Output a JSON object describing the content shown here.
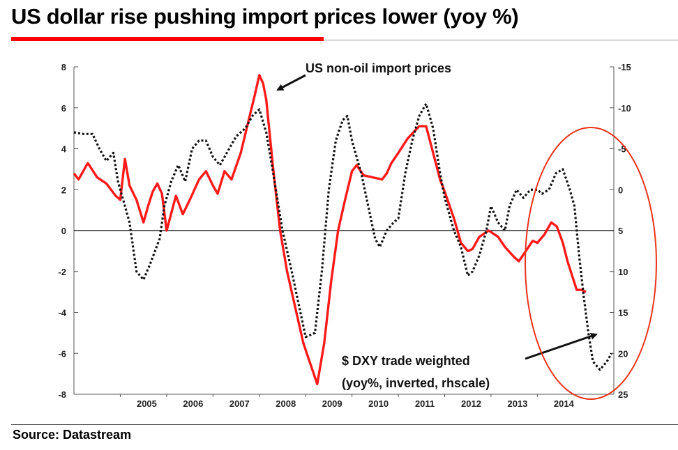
{
  "header": {
    "title": "US dollar rise pushing import prices lower (yoy %)"
  },
  "footer": {
    "source": "Source: Datastream"
  },
  "chart_data": {
    "type": "line",
    "title": "US dollar rise pushing import prices lower (yoy %)",
    "xlabel": "",
    "ylabel": "",
    "x_tick_labels": [
      "2005",
      "2006",
      "2007",
      "2008",
      "2009",
      "2010",
      "2011",
      "2012",
      "2013",
      "2014"
    ],
    "left_axis": {
      "ylim": [
        -8,
        8
      ],
      "ticks": [
        8,
        6,
        4,
        2,
        0,
        -2,
        -4,
        -6,
        -8
      ]
    },
    "right_axis": {
      "ylim": [
        -15,
        25
      ],
      "inverted": true,
      "ticks": [
        -15,
        -10,
        -5,
        0,
        5,
        10,
        15,
        20,
        25
      ]
    },
    "colors": {
      "import": "#ff1a1a",
      "dxy": "#111111",
      "circle": "#e8341c",
      "zero_line": "#000000"
    },
    "series": [
      {
        "name": "US non-oil import prices",
        "axis": "left",
        "style": "solid",
        "color": "#ff1a1a",
        "points": [
          [
            2004.0,
            2.8
          ],
          [
            2004.1,
            2.5
          ],
          [
            2004.3,
            3.3
          ],
          [
            2004.5,
            2.6
          ],
          [
            2004.7,
            2.3
          ],
          [
            2004.9,
            1.7
          ],
          [
            2005.0,
            1.5
          ],
          [
            2005.1,
            3.5
          ],
          [
            2005.2,
            2.2
          ],
          [
            2005.35,
            1.5
          ],
          [
            2005.5,
            0.4
          ],
          [
            2005.6,
            1.2
          ],
          [
            2005.7,
            1.9
          ],
          [
            2005.8,
            2.3
          ],
          [
            2005.9,
            1.8
          ],
          [
            2006.0,
            0.0
          ],
          [
            2006.2,
            1.7
          ],
          [
            2006.35,
            0.8
          ],
          [
            2006.5,
            1.5
          ],
          [
            2006.7,
            2.5
          ],
          [
            2006.85,
            2.9
          ],
          [
            2007.0,
            2.2
          ],
          [
            2007.1,
            1.8
          ],
          [
            2007.25,
            2.9
          ],
          [
            2007.4,
            2.5
          ],
          [
            2007.6,
            3.8
          ],
          [
            2007.75,
            5.2
          ],
          [
            2007.9,
            6.6
          ],
          [
            2008.0,
            7.6
          ],
          [
            2008.08,
            7.2
          ],
          [
            2008.15,
            6.4
          ],
          [
            2008.3,
            3.0
          ],
          [
            2008.45,
            0.0
          ],
          [
            2008.6,
            -2.0
          ],
          [
            2008.8,
            -4.0
          ],
          [
            2008.95,
            -5.5
          ],
          [
            2009.1,
            -6.5
          ],
          [
            2009.25,
            -7.5
          ],
          [
            2009.4,
            -5.5
          ],
          [
            2009.55,
            -2.5
          ],
          [
            2009.7,
            0.0
          ],
          [
            2009.85,
            1.5
          ],
          [
            2010.0,
            2.9
          ],
          [
            2010.1,
            3.2
          ],
          [
            2010.25,
            2.7
          ],
          [
            2010.45,
            2.6
          ],
          [
            2010.65,
            2.5
          ],
          [
            2010.75,
            2.8
          ],
          [
            2010.85,
            3.3
          ],
          [
            2011.0,
            3.8
          ],
          [
            2011.2,
            4.5
          ],
          [
            2011.45,
            5.1
          ],
          [
            2011.6,
            5.1
          ],
          [
            2011.75,
            3.8
          ],
          [
            2011.9,
            2.5
          ],
          [
            2012.0,
            1.9
          ],
          [
            2012.2,
            0.6
          ],
          [
            2012.35,
            -0.6
          ],
          [
            2012.5,
            -1.0
          ],
          [
            2012.6,
            -0.9
          ],
          [
            2012.75,
            -0.3
          ],
          [
            2012.95,
            0.0
          ],
          [
            2013.15,
            -0.3
          ],
          [
            2013.3,
            -0.8
          ],
          [
            2013.5,
            -1.3
          ],
          [
            2013.6,
            -1.5
          ],
          [
            2013.75,
            -1.0
          ],
          [
            2013.9,
            -0.5
          ],
          [
            2014.0,
            -0.6
          ],
          [
            2014.15,
            -0.2
          ],
          [
            2014.3,
            0.4
          ],
          [
            2014.42,
            0.2
          ],
          [
            2014.55,
            -0.6
          ],
          [
            2014.65,
            -1.5
          ],
          [
            2014.75,
            -2.2
          ],
          [
            2014.85,
            -2.9
          ],
          [
            2014.95,
            -2.9
          ],
          [
            2015.05,
            -3.0
          ]
        ]
      },
      {
        "name": "$ DXY trade weighted (yoy%, inverted, rhscale)",
        "axis": "right",
        "style": "dotted",
        "color": "#111111",
        "points": [
          [
            2004.0,
            -7.0
          ],
          [
            2004.2,
            -6.8
          ],
          [
            2004.4,
            -6.8
          ],
          [
            2004.55,
            -5.0
          ],
          [
            2004.7,
            -3.5
          ],
          [
            2004.85,
            -4.5
          ],
          [
            2004.95,
            -1.0
          ],
          [
            2005.05,
            1.0
          ],
          [
            2005.2,
            4.0
          ],
          [
            2005.35,
            10.0
          ],
          [
            2005.5,
            11.0
          ],
          [
            2005.65,
            9.0
          ],
          [
            2005.85,
            6.0
          ],
          [
            2005.95,
            2.0
          ],
          [
            2006.1,
            -1.0
          ],
          [
            2006.25,
            -3.0
          ],
          [
            2006.4,
            -1.0
          ],
          [
            2006.55,
            -5.0
          ],
          [
            2006.7,
            -6.0
          ],
          [
            2006.85,
            -6.0
          ],
          [
            2007.0,
            -4.0
          ],
          [
            2007.15,
            -3.0
          ],
          [
            2007.3,
            -4.5
          ],
          [
            2007.5,
            -6.5
          ],
          [
            2007.7,
            -7.5
          ],
          [
            2007.85,
            -9.0
          ],
          [
            2008.0,
            -9.8
          ],
          [
            2008.15,
            -7.0
          ],
          [
            2008.3,
            -2.0
          ],
          [
            2008.5,
            5.0
          ],
          [
            2008.7,
            10.0
          ],
          [
            2008.85,
            14.0
          ],
          [
            2009.0,
            18.0
          ],
          [
            2009.2,
            17.5
          ],
          [
            2009.35,
            10.0
          ],
          [
            2009.5,
            0.0
          ],
          [
            2009.65,
            -6.0
          ],
          [
            2009.8,
            -8.5
          ],
          [
            2009.9,
            -9.0
          ],
          [
            2010.0,
            -6.0
          ],
          [
            2010.2,
            -2.0
          ],
          [
            2010.35,
            2.0
          ],
          [
            2010.5,
            6.0
          ],
          [
            2010.6,
            7.0
          ],
          [
            2010.75,
            5.0
          ],
          [
            2010.9,
            4.0
          ],
          [
            2011.0,
            3.5
          ],
          [
            2011.15,
            -2.0
          ],
          [
            2011.3,
            -6.0
          ],
          [
            2011.45,
            -9.0
          ],
          [
            2011.6,
            -10.5
          ],
          [
            2011.75,
            -7.5
          ],
          [
            2011.9,
            -2.0
          ],
          [
            2012.0,
            1.0
          ],
          [
            2012.2,
            5.0
          ],
          [
            2012.35,
            7.0
          ],
          [
            2012.5,
            10.5
          ],
          [
            2012.6,
            10.0
          ],
          [
            2012.75,
            8.0
          ],
          [
            2012.9,
            5.0
          ],
          [
            2013.0,
            2.0
          ],
          [
            2013.15,
            4.0
          ],
          [
            2013.3,
            5.0
          ],
          [
            2013.4,
            2.0
          ],
          [
            2013.55,
            0.0
          ],
          [
            2013.7,
            1.0
          ],
          [
            2013.85,
            0.0
          ],
          [
            2014.0,
            0.0
          ],
          [
            2014.1,
            0.5
          ],
          [
            2014.25,
            0.0
          ],
          [
            2014.4,
            -2.0
          ],
          [
            2014.55,
            -2.5
          ],
          [
            2014.7,
            0.0
          ],
          [
            2014.8,
            2.0
          ],
          [
            2014.9,
            8.0
          ],
          [
            2015.0,
            13.0
          ],
          [
            2015.1,
            17.5
          ],
          [
            2015.2,
            21.0
          ],
          [
            2015.35,
            22.0
          ],
          [
            2015.5,
            21.0
          ],
          [
            2015.6,
            20.0
          ]
        ]
      }
    ],
    "annotations": [
      {
        "text": "US non-oil import prices",
        "arrow": true
      },
      {
        "text": "$ DXY trade weighted",
        "arrow": true
      },
      {
        "text": "(yoy%, inverted, rhscale)",
        "arrow": false
      }
    ]
  }
}
